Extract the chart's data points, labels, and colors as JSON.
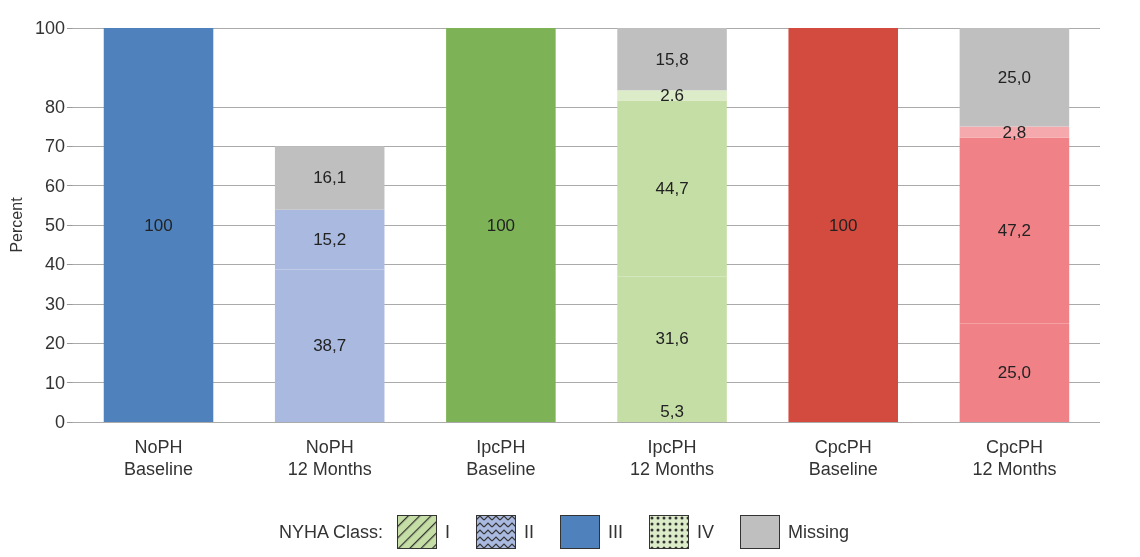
{
  "chart_data": {
    "type": "bar",
    "stacked": true,
    "ylabel": "Percent",
    "legend_title": "NYHA Class:",
    "legend": "bottom",
    "grid": "y",
    "categories": [
      "NoPH\nBaseline",
      "NoPH\n12 Months",
      "IpcPH\nBaseline",
      "IpcPH\n12 Months",
      "CpcPH\nBaseline",
      "CpcPH\n12 Months"
    ],
    "ylim": [
      0,
      100
    ],
    "yticks": [
      0,
      10,
      20,
      30,
      40,
      50,
      60,
      70,
      80,
      100
    ],
    "series": [
      {
        "name": "I",
        "values": [
          null,
          null,
          null,
          5.3,
          null,
          null
        ],
        "colors": [
          "#4f81bd",
          "#a9b9df",
          "#7db356",
          "#c5dea5",
          "#d34a3e",
          "#f08287"
        ],
        "value_labels": [
          null,
          null,
          null,
          "5,3",
          null,
          null
        ]
      },
      {
        "name": "II",
        "values": [
          null,
          38.7,
          null,
          31.6,
          null,
          25.0
        ],
        "colors": [
          "#4f81bd",
          "#a9b9df",
          "#7db356",
          "#c5dea5",
          "#d34a3e",
          "#f08287"
        ],
        "value_labels": [
          null,
          "38,7",
          null,
          "31,6",
          null,
          "25,0"
        ]
      },
      {
        "name": "III",
        "values": [
          100,
          15.2,
          100,
          44.7,
          100,
          47.2
        ],
        "colors": [
          "#4f81bd",
          "#a9b9df",
          "#7db356",
          "#c5dea5",
          "#d34a3e",
          "#f08287"
        ],
        "value_labels": [
          "100",
          "15,2",
          "100",
          "44,7",
          "100",
          "47,2"
        ]
      },
      {
        "name": "IV",
        "values": [
          null,
          null,
          null,
          2.6,
          null,
          2.8
        ],
        "colors": [
          "#4f81bd",
          "#a9b9df",
          "#7db356",
          "#dcebc8",
          "#d34a3e",
          "#f5a9ac"
        ],
        "value_labels": [
          null,
          null,
          null,
          "2.6",
          null,
          "2,8"
        ]
      },
      {
        "name": "Missing",
        "values": [
          null,
          16.1,
          null,
          15.8,
          null,
          25.0
        ],
        "colors": [
          "#bfbfbf",
          "#bfbfbf",
          "#bfbfbf",
          "#bfbfbf",
          "#bfbfbf",
          "#bfbfbf"
        ],
        "value_labels": [
          null,
          "16,1",
          null,
          "15,8",
          null,
          "25,0"
        ]
      }
    ]
  }
}
